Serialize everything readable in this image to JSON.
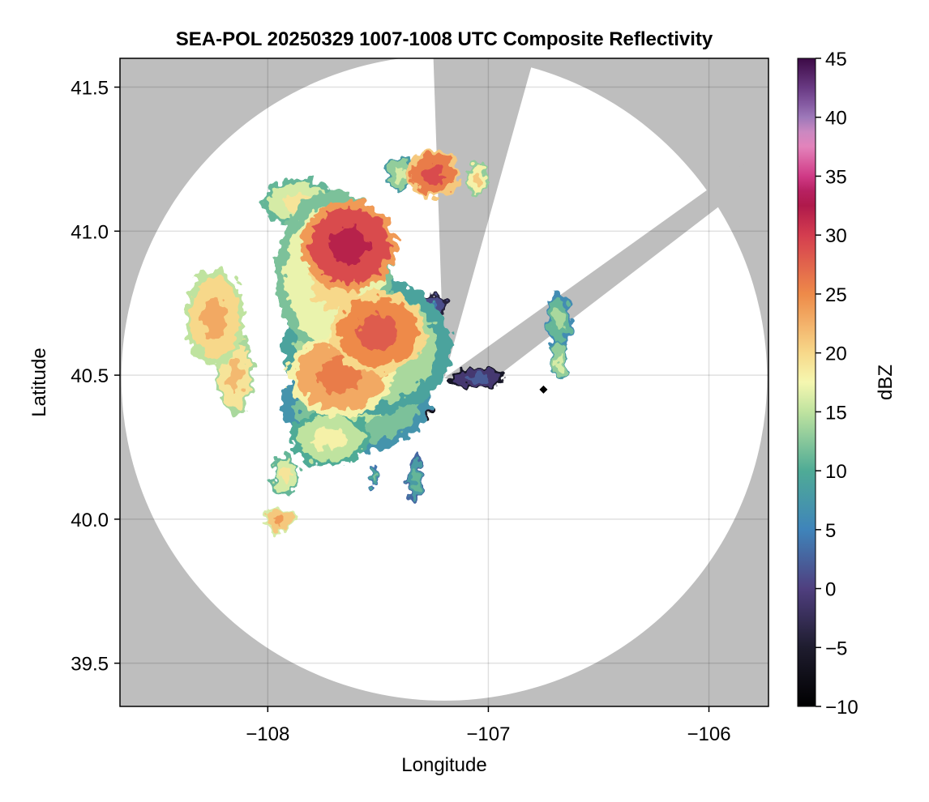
{
  "chart_data": {
    "type": "heatmap",
    "title": "SEA-POL 20250329 1007-1008 UTC Composite Reflectivity",
    "xlabel": "Longitude",
    "ylabel": "Latitude",
    "xlim": [
      -108.67,
      -105.73
    ],
    "ylim": [
      39.35,
      41.6
    ],
    "xticks": [
      -108,
      -107,
      -106
    ],
    "xtick_labels": [
      "−108",
      "−107",
      "−106"
    ],
    "yticks": [
      39.5,
      40.0,
      40.5,
      41.0,
      41.5
    ],
    "ytick_labels": [
      "39.5",
      "40.0",
      "40.5",
      "41.0",
      "41.5"
    ],
    "grid": true,
    "no_data_color": "#bebebe",
    "radar": {
      "center": [
        -107.2,
        40.49
      ],
      "radius_deg_lat": 1.12,
      "blocked_sectors": [
        {
          "from_lon": -106.82,
          "from_lat": 41.53,
          "to_lon": -107.25,
          "to_lat": 41.62
        },
        {
          "from_lon": -106.05,
          "from_lat": 41.12,
          "to_lon": -107.14,
          "to_lat": 40.48
        }
      ]
    },
    "colorbar": {
      "label": "dBZ",
      "vmin": -10,
      "vmax": 45,
      "ticks": [
        -10,
        -5,
        0,
        5,
        10,
        15,
        20,
        25,
        30,
        35,
        40,
        45
      ],
      "tick_labels": [
        "−10",
        "−5",
        "0",
        "5",
        "10",
        "15",
        "20",
        "25",
        "30",
        "35",
        "40",
        "45"
      ],
      "colormap": [
        [
          -10,
          "#000000"
        ],
        [
          -5,
          "#1e1c2e"
        ],
        [
          0,
          "#4f3f7f"
        ],
        [
          5,
          "#3f84ba"
        ],
        [
          10,
          "#4fab96"
        ],
        [
          15,
          "#bfe39f"
        ],
        [
          17.5,
          "#f5f7b0"
        ],
        [
          20,
          "#f7d88a"
        ],
        [
          25,
          "#ee8a49"
        ],
        [
          30,
          "#d43d4f"
        ],
        [
          33,
          "#a8124a"
        ],
        [
          35,
          "#d03a86"
        ],
        [
          38,
          "#e791c5"
        ],
        [
          40,
          "#9d78b9"
        ],
        [
          42,
          "#72438f"
        ],
        [
          45,
          "#3c0a46"
        ]
      ]
    },
    "echoes": [
      {
        "lon": -107.63,
        "lat": 40.95,
        "rx": 0.18,
        "ry": 0.13,
        "dbz": 32
      },
      {
        "lon": -107.7,
        "lat": 40.85,
        "rx": 0.22,
        "ry": 0.24,
        "dbz": 20
      },
      {
        "lon": -107.86,
        "lat": 41.1,
        "rx": 0.14,
        "ry": 0.07,
        "dbz": 19
      },
      {
        "lon": -107.5,
        "lat": 40.65,
        "rx": 0.18,
        "ry": 0.12,
        "dbz": 28
      },
      {
        "lon": -107.55,
        "lat": 40.6,
        "rx": 0.32,
        "ry": 0.2,
        "dbz": 17
      },
      {
        "lon": -107.67,
        "lat": 40.5,
        "rx": 0.2,
        "ry": 0.12,
        "dbz": 26
      },
      {
        "lon": -107.6,
        "lat": 40.4,
        "rx": 0.28,
        "ry": 0.14,
        "dbz": 15
      },
      {
        "lon": -107.47,
        "lat": 40.42,
        "rx": 0.14,
        "ry": 0.08,
        "dbz": 9
      },
      {
        "lon": -107.72,
        "lat": 40.28,
        "rx": 0.15,
        "ry": 0.08,
        "dbz": 18
      },
      {
        "lon": -107.55,
        "lat": 40.32,
        "rx": 0.12,
        "ry": 0.06,
        "dbz": 12
      },
      {
        "lon": -108.24,
        "lat": 40.7,
        "rx": 0.11,
        "ry": 0.14,
        "dbz": 23
      },
      {
        "lon": -108.15,
        "lat": 40.5,
        "rx": 0.07,
        "ry": 0.12,
        "dbz": 22
      },
      {
        "lon": -107.92,
        "lat": 40.15,
        "rx": 0.05,
        "ry": 0.06,
        "dbz": 19
      },
      {
        "lon": -107.95,
        "lat": 40.0,
        "rx": 0.06,
        "ry": 0.035,
        "dbz": 24
      },
      {
        "lon": -107.25,
        "lat": 41.2,
        "rx": 0.1,
        "ry": 0.07,
        "dbz": 29
      },
      {
        "lon": -107.4,
        "lat": 41.2,
        "rx": 0.06,
        "ry": 0.05,
        "dbz": 16
      },
      {
        "lon": -107.05,
        "lat": 41.18,
        "rx": 0.04,
        "ry": 0.05,
        "dbz": 21
      },
      {
        "lon": -107.26,
        "lat": 40.74,
        "rx": 0.06,
        "ry": 0.03,
        "dbz": 4
      },
      {
        "lon": -107.05,
        "lat": 40.49,
        "rx": 0.1,
        "ry": 0.03,
        "dbz": 2
      },
      {
        "lon": -107.3,
        "lat": 40.37,
        "rx": 0.035,
        "ry": 0.03,
        "dbz": 0
      },
      {
        "lon": -107.33,
        "lat": 40.14,
        "rx": 0.03,
        "ry": 0.07,
        "dbz": 11
      },
      {
        "lon": -107.52,
        "lat": 40.15,
        "rx": 0.02,
        "ry": 0.03,
        "dbz": 12
      },
      {
        "lon": -106.68,
        "lat": 40.69,
        "rx": 0.05,
        "ry": 0.08,
        "dbz": 14
      },
      {
        "lon": -106.68,
        "lat": 40.55,
        "rx": 0.03,
        "ry": 0.06,
        "dbz": 16
      }
    ],
    "marker": {
      "lon": -106.75,
      "lat": 40.45,
      "color": "#000000"
    }
  }
}
